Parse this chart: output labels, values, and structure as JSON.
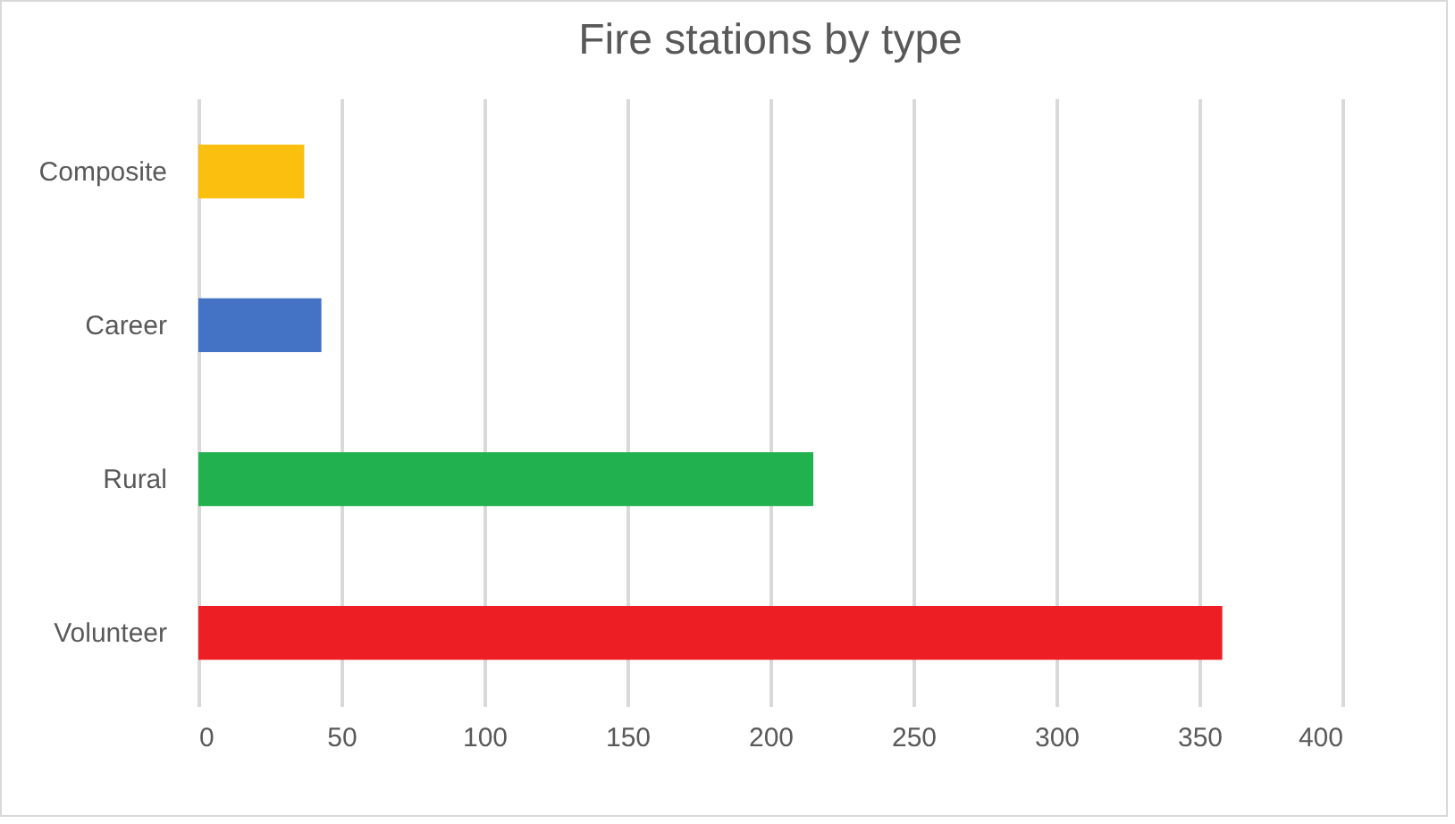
{
  "chart_data": {
    "type": "bar",
    "orientation": "horizontal",
    "title": "Fire stations by type",
    "categories": [
      "Composite",
      "Career",
      "Rural",
      "Volunteer"
    ],
    "values": [
      37,
      43,
      215,
      358
    ],
    "colors": [
      "#fbbf0f",
      "#4472c4",
      "#21b24f",
      "#ed1f24"
    ],
    "xlim": [
      0,
      400
    ],
    "xticks": [
      0,
      50,
      100,
      150,
      200,
      250,
      300,
      350,
      400
    ],
    "grid": "x"
  }
}
